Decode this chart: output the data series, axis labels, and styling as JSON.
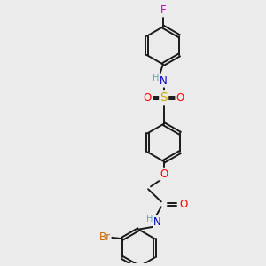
{
  "bg_color": "#ebebeb",
  "bond_color": "#1a1a1a",
  "bond_width": 1.4,
  "dbo": 0.055,
  "atom_colors": {
    "N": "#0000cc",
    "O": "#ff0000",
    "S": "#ccaa00",
    "Br": "#cc6600",
    "F": "#cc00cc",
    "H": "#5aacac",
    "C": "#1a1a1a"
  },
  "font_size": 8.5,
  "fig_bg": "#ebebeb"
}
